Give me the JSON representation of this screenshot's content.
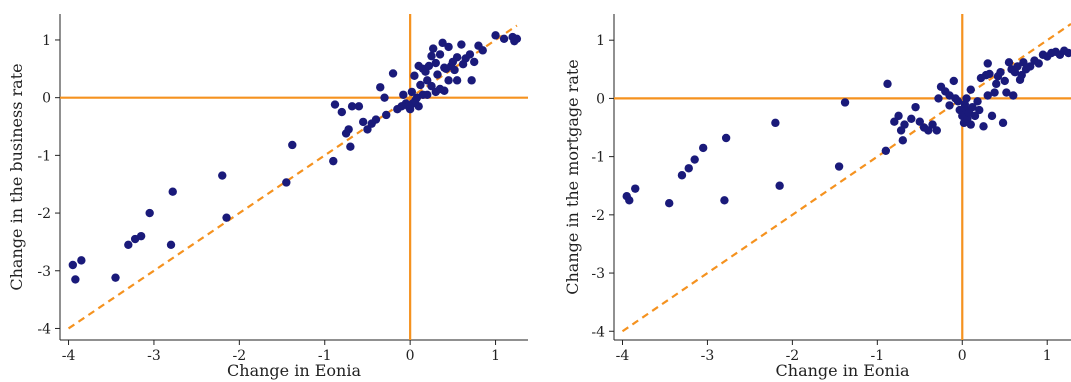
{
  "colors": {
    "points": "#1a1a7a",
    "reference_lines": "#f5921f",
    "diagonal": "#f5921f",
    "axis": "#222222"
  },
  "chart_data": [
    {
      "type": "scatter",
      "title": "",
      "xlabel": "Change in Eonia",
      "ylabel": "Change in the business rate",
      "xlim": [
        -4.1,
        1.38
      ],
      "ylim": [
        -4.2,
        1.45
      ],
      "xticks": [
        -4,
        -3,
        -2,
        -1,
        0,
        1
      ],
      "yticks": [
        -4,
        -3,
        -2,
        -1,
        0,
        1
      ],
      "xtick_labels": [
        "-4",
        "-3",
        "-2",
        "-1",
        "0",
        "1"
      ],
      "ytick_labels": [
        "-4",
        "-3",
        "-2",
        "-1",
        "0",
        "1"
      ],
      "reference_lines": {
        "x": 0,
        "y": 0
      },
      "diagonal": {
        "x": [
          -4,
          1.25
        ],
        "y": [
          -4,
          1.25
        ],
        "style": "dashed"
      },
      "grid": false,
      "points": [
        [
          -3.95,
          -2.9
        ],
        [
          -3.92,
          -3.15
        ],
        [
          -3.85,
          -2.82
        ],
        [
          -3.45,
          -3.12
        ],
        [
          -3.3,
          -2.55
        ],
        [
          -3.22,
          -2.45
        ],
        [
          -3.15,
          -2.4
        ],
        [
          -3.05,
          -2.0
        ],
        [
          -2.8,
          -2.55
        ],
        [
          -2.78,
          -1.63
        ],
        [
          -2.2,
          -1.35
        ],
        [
          -2.15,
          -2.08
        ],
        [
          -1.45,
          -1.47
        ],
        [
          -1.38,
          -0.82
        ],
        [
          -0.9,
          -1.1
        ],
        [
          -0.88,
          -0.12
        ],
        [
          -0.8,
          -0.25
        ],
        [
          -0.75,
          -0.62
        ],
        [
          -0.72,
          -0.55
        ],
        [
          -0.7,
          -0.85
        ],
        [
          -0.68,
          -0.15
        ],
        [
          -0.6,
          -0.15
        ],
        [
          -0.55,
          -0.42
        ],
        [
          -0.5,
          -0.55
        ],
        [
          -0.45,
          -0.45
        ],
        [
          -0.4,
          -0.38
        ],
        [
          -0.35,
          0.18
        ],
        [
          -0.3,
          0.0
        ],
        [
          -0.28,
          -0.3
        ],
        [
          -0.2,
          0.42
        ],
        [
          -0.15,
          -0.2
        ],
        [
          -0.1,
          -0.15
        ],
        [
          -0.08,
          0.05
        ],
        [
          -0.05,
          -0.1
        ],
        [
          -0.02,
          -0.15
        ],
        [
          0.0,
          -0.2
        ],
        [
          0.02,
          0.1
        ],
        [
          0.03,
          -0.1
        ],
        [
          0.05,
          0.38
        ],
        [
          0.06,
          -0.05
        ],
        [
          0.08,
          0.0
        ],
        [
          0.1,
          0.55
        ],
        [
          0.1,
          -0.15
        ],
        [
          0.12,
          0.22
        ],
        [
          0.15,
          0.5
        ],
        [
          0.15,
          0.05
        ],
        [
          0.18,
          0.45
        ],
        [
          0.2,
          0.3
        ],
        [
          0.22,
          0.55
        ],
        [
          0.25,
          0.72
        ],
        [
          0.27,
          0.85
        ],
        [
          0.3,
          0.6
        ],
        [
          0.32,
          0.4
        ],
        [
          0.35,
          0.75
        ],
        [
          0.38,
          0.95
        ],
        [
          0.4,
          0.52
        ],
        [
          0.42,
          0.5
        ],
        [
          0.45,
          0.88
        ],
        [
          0.48,
          0.55
        ],
        [
          0.5,
          0.62
        ],
        [
          0.52,
          0.48
        ],
        [
          0.55,
          0.7
        ],
        [
          0.6,
          0.92
        ],
        [
          0.62,
          0.58
        ],
        [
          0.65,
          0.68
        ],
        [
          0.7,
          0.75
        ],
        [
          0.72,
          0.3
        ],
        [
          0.75,
          0.62
        ],
        [
          0.8,
          0.9
        ],
        [
          0.85,
          0.82
        ],
        [
          1.0,
          1.08
        ],
        [
          1.1,
          1.02
        ],
        [
          1.2,
          1.05
        ],
        [
          1.22,
          0.98
        ],
        [
          1.25,
          1.02
        ],
        [
          0.3,
          0.1
        ],
        [
          0.35,
          0.15
        ],
        [
          0.4,
          0.12
        ],
        [
          0.2,
          0.05
        ],
        [
          0.25,
          0.2
        ],
        [
          0.55,
          0.3
        ],
        [
          0.45,
          0.3
        ]
      ]
    },
    {
      "type": "scatter",
      "title": "",
      "xlabel": "Change in Eonia",
      "ylabel": "Change in the mortgage rate",
      "xlim": [
        -4.1,
        1.28
      ],
      "ylim": [
        -4.15,
        1.45
      ],
      "xticks": [
        -4,
        -3,
        -2,
        -1,
        0,
        1
      ],
      "yticks": [
        -4,
        -3,
        -2,
        -1,
        0,
        1
      ],
      "xtick_labels": [
        "-4",
        "-3",
        "-2",
        "-1",
        "0",
        "1"
      ],
      "ytick_labels": [
        "-4",
        "-3",
        "-2",
        "-1",
        "0",
        "1"
      ],
      "reference_lines": {
        "x": 0,
        "y": 0
      },
      "diagonal": {
        "x": [
          -4,
          1.28
        ],
        "y": [
          -4,
          1.28
        ],
        "style": "dashed"
      },
      "grid": false,
      "points": [
        [
          -3.95,
          -1.68
        ],
        [
          -3.92,
          -1.75
        ],
        [
          -3.85,
          -1.55
        ],
        [
          -3.45,
          -1.8
        ],
        [
          -3.3,
          -1.32
        ],
        [
          -3.22,
          -1.2
        ],
        [
          -3.15,
          -1.05
        ],
        [
          -3.05,
          -0.85
        ],
        [
          -2.8,
          -1.75
        ],
        [
          -2.78,
          -0.68
        ],
        [
          -2.2,
          -0.42
        ],
        [
          -2.15,
          -1.5
        ],
        [
          -1.45,
          -1.17
        ],
        [
          -1.38,
          -0.07
        ],
        [
          -0.9,
          -0.9
        ],
        [
          -0.88,
          0.25
        ],
        [
          -0.8,
          -0.4
        ],
        [
          -0.75,
          -0.3
        ],
        [
          -0.72,
          -0.55
        ],
        [
          -0.7,
          -0.72
        ],
        [
          -0.68,
          -0.45
        ],
        [
          -0.6,
          -0.35
        ],
        [
          -0.55,
          -0.15
        ],
        [
          -0.5,
          -0.4
        ],
        [
          -0.45,
          -0.5
        ],
        [
          -0.4,
          -0.55
        ],
        [
          -0.35,
          -0.45
        ],
        [
          -0.3,
          -0.55
        ],
        [
          -0.28,
          0.0
        ],
        [
          -0.25,
          0.2
        ],
        [
          -0.2,
          0.12
        ],
        [
          -0.15,
          -0.12
        ],
        [
          -0.1,
          0.3
        ],
        [
          -0.08,
          0.0
        ],
        [
          -0.05,
          -0.05
        ],
        [
          -0.03,
          -0.2
        ],
        [
          0.0,
          -0.3
        ],
        [
          0.02,
          -0.42
        ],
        [
          0.03,
          -0.1
        ],
        [
          0.05,
          -0.2
        ],
        [
          0.06,
          -0.35
        ],
        [
          0.08,
          -0.25
        ],
        [
          0.1,
          -0.45
        ],
        [
          0.12,
          -0.15
        ],
        [
          0.15,
          -0.3
        ],
        [
          0.18,
          -0.05
        ],
        [
          0.2,
          -0.2
        ],
        [
          0.22,
          0.35
        ],
        [
          0.25,
          -0.48
        ],
        [
          0.28,
          0.4
        ],
        [
          0.3,
          0.05
        ],
        [
          0.32,
          0.42
        ],
        [
          0.35,
          -0.3
        ],
        [
          0.38,
          0.1
        ],
        [
          0.4,
          0.25
        ],
        [
          0.42,
          0.38
        ],
        [
          0.45,
          0.45
        ],
        [
          0.48,
          -0.42
        ],
        [
          0.5,
          0.3
        ],
        [
          0.52,
          0.1
        ],
        [
          0.55,
          0.62
        ],
        [
          0.58,
          0.5
        ],
        [
          0.6,
          0.05
        ],
        [
          0.62,
          0.45
        ],
        [
          0.65,
          0.55
        ],
        [
          0.68,
          0.32
        ],
        [
          0.7,
          0.4
        ],
        [
          0.72,
          0.62
        ],
        [
          0.75,
          0.5
        ],
        [
          0.8,
          0.55
        ],
        [
          0.85,
          0.65
        ],
        [
          0.9,
          0.6
        ],
        [
          0.95,
          0.75
        ],
        [
          1.0,
          0.72
        ],
        [
          1.05,
          0.78
        ],
        [
          1.1,
          0.8
        ],
        [
          1.15,
          0.75
        ],
        [
          1.2,
          0.82
        ],
        [
          1.25,
          0.78
        ],
        [
          -0.15,
          0.05
        ],
        [
          0.05,
          0.0
        ],
        [
          0.1,
          0.15
        ],
        [
          0.3,
          0.6
        ]
      ]
    }
  ]
}
